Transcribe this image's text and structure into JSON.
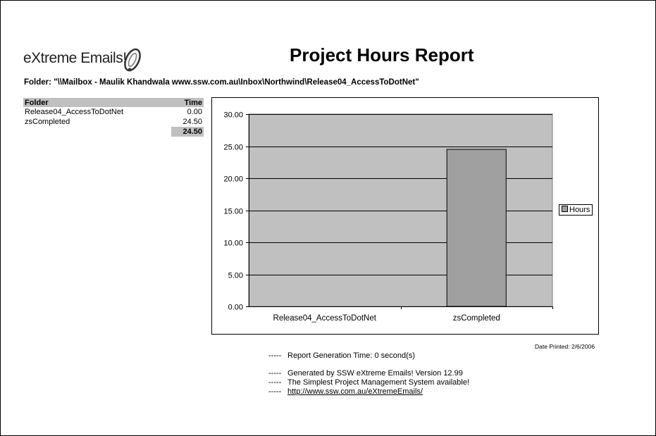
{
  "header": {
    "logo_text": "eXtreme Emails!",
    "title": "Project Hours Report",
    "folder_line": "Folder: \"\\\\Mailbox - Maulik Khandwala www.ssw.com.au\\Inbox\\Northwind\\Release04_AccessToDotNet\""
  },
  "summary": {
    "col_folder": "Folder",
    "col_time": "Time",
    "rows": [
      {
        "folder": "Release04_AccessToDotNet",
        "time": "0.00"
      },
      {
        "folder": "zsCompleted",
        "time": "24.50"
      }
    ],
    "total": "24.50"
  },
  "chart_data": {
    "type": "bar",
    "categories": [
      "Release04_AccessToDotNet",
      "zsCompleted"
    ],
    "series": [
      {
        "name": "Hours",
        "values": [
          0.0,
          24.5
        ]
      }
    ],
    "ylim": [
      0,
      30
    ],
    "yticks": [
      "0.00",
      "5.00",
      "10.00",
      "15.00",
      "20.00",
      "25.00",
      "30.00"
    ],
    "grid": true,
    "legend_position": "right",
    "colors": {
      "plot_bg": "#c0c0c0",
      "bar": "#a0a0a0"
    }
  },
  "date_printed": "Date Printed: 2/6/2006",
  "footer": {
    "dash": "-----",
    "generation_time": "Report Generation Time: 0 second(s)",
    "generated_by": "Generated by SSW eXtreme Emails! Version 12.99",
    "tagline": "The Simplest Project Management System available!",
    "link": "http://www.ssw.com.au/eXtremeEmails/"
  }
}
